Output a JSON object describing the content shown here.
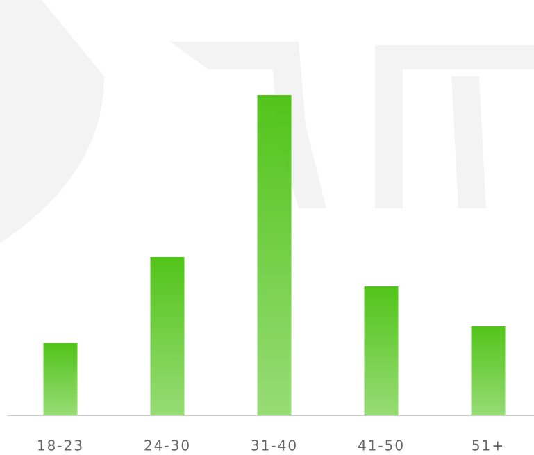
{
  "chart_data": {
    "type": "bar",
    "categories": [
      "18-23",
      "24-30",
      "31-40",
      "41-50",
      "51+"
    ],
    "values": [
      104,
      228,
      461,
      186,
      128
    ],
    "color": "#52c41a",
    "ylim": [
      0,
      500
    ]
  }
}
